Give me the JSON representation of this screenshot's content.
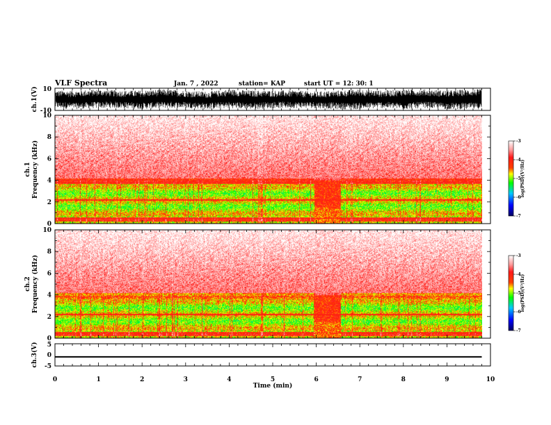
{
  "header": {
    "title": "VLF Spectra",
    "date": "Jan. 7 , 2022",
    "station": "station= KAP",
    "start": "start  UT =   12: 30: 1"
  },
  "colorbar": {
    "label": "log(PSD)(V²/Hz)",
    "ticks": [
      "-3",
      "-4",
      "-5",
      "-6",
      "-7"
    ],
    "colors": [
      "#ffffff",
      "#ff9090",
      "#ff0000",
      "#ffff00",
      "#00ff00",
      "#00c8ff",
      "#0000ff",
      "#000060"
    ]
  },
  "chart_data": [
    {
      "type": "line",
      "ylabel": "ch.1(V)",
      "ylim": [
        -10,
        10
      ],
      "yticks": [
        "10",
        "-10"
      ],
      "x": [
        0,
        0.5,
        1,
        1.5,
        2,
        2.5,
        3,
        3.5,
        4,
        4.5,
        5,
        5.5,
        6,
        6.5,
        7,
        7.5,
        8,
        8.5,
        9,
        9.5,
        9.8
      ],
      "y_upper": [
        5,
        5,
        6,
        5,
        5,
        6,
        5,
        4,
        6,
        5,
        5,
        5,
        4,
        5,
        6,
        5,
        6,
        6,
        5,
        6,
        6
      ],
      "y_lower": [
        -5,
        -6,
        -5,
        -5,
        -6,
        -5,
        -5,
        -6,
        -5,
        -6,
        -5,
        -5,
        -5,
        -6,
        -6,
        -5,
        -6,
        -5,
        -6,
        -6,
        -6
      ]
    },
    {
      "type": "heatmap",
      "ylabel": "ch.1\nFrequency (kHz)",
      "ylim": [
        0,
        10
      ],
      "yticks": [
        "0",
        "2",
        "4",
        "6",
        "8",
        "10"
      ],
      "gap_x": [
        5.95,
        6.55
      ]
    },
    {
      "type": "heatmap",
      "ylabel": "ch.2\nFrequency (kHz)",
      "ylim": [
        0,
        10
      ],
      "yticks": [
        "0",
        "2",
        "4",
        "6",
        "8",
        "10"
      ],
      "gap_x": [
        5.95,
        6.55
      ]
    },
    {
      "type": "line",
      "ylabel": "ch.3(V)",
      "ylim": [
        -5,
        5
      ],
      "yticks": [
        "5",
        "0",
        "-5"
      ],
      "x": [
        0,
        9.8
      ],
      "y_upper": [
        -0.6,
        -0.6
      ],
      "y_lower": [
        -1.2,
        -1.2
      ]
    }
  ],
  "xaxis": {
    "label": "Time  (min)",
    "xlim": [
      0,
      10
    ],
    "ticks": [
      "0",
      "1",
      "2",
      "3",
      "4",
      "5",
      "6",
      "7",
      "8",
      "9",
      "10"
    ]
  }
}
